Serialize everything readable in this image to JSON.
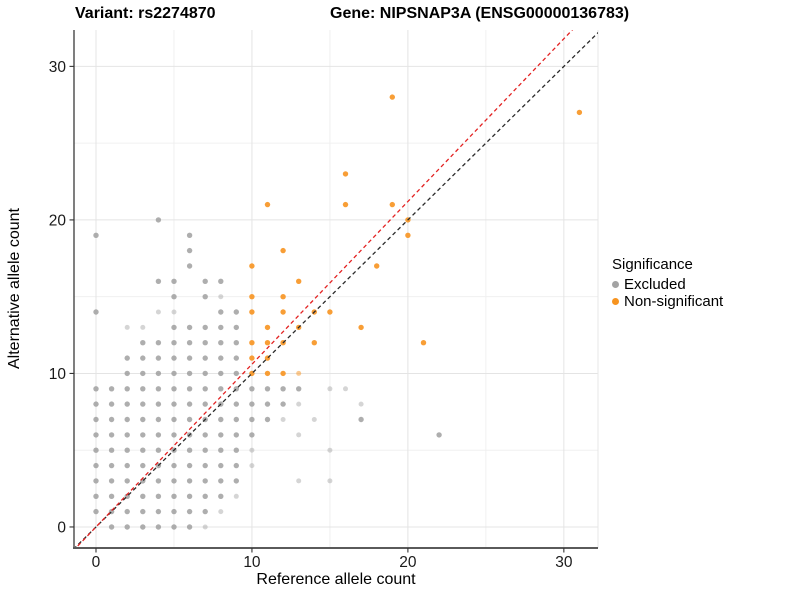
{
  "figure": {
    "title_left": "Variant: rs2274870",
    "title_right": "Gene: NIPSNAP3A (ENSG00000136783)"
  },
  "chart_data": {
    "type": "scatter",
    "xlabel": "Reference allele count",
    "ylabel": "Alternative allele count",
    "xlim": [
      -1.41,
      32.19
    ],
    "ylim": [
      -1.37,
      32.37
    ],
    "x_major_ticks": [
      0,
      10,
      20,
      30
    ],
    "y_major_ticks": [
      0,
      10,
      20,
      30
    ],
    "x_minor_ticks": [
      5,
      15,
      25
    ],
    "y_minor_ticks": [
      5,
      15,
      25
    ],
    "grid": "major+minor",
    "legend": {
      "title": "Significance",
      "position": "right",
      "entries": [
        {
          "label": "Excluded",
          "color": "#a3a3a3"
        },
        {
          "label": "Non-significant",
          "color": "#f79420"
        }
      ]
    },
    "reference_lines": [
      {
        "name": "identity",
        "slope": 1,
        "intercept": 0,
        "style": "dashed",
        "color": "#2b2b2b"
      },
      {
        "name": "fitted-ratio",
        "slope": 1.06,
        "intercept": 0,
        "style": "dashed",
        "color": "#e32222"
      }
    ],
    "series": [
      {
        "name": "Excluded",
        "color": "#9a9a9a",
        "opacity": 0.8,
        "light_opacity": 0.42,
        "points": [
          [
            1,
            0
          ],
          [
            2,
            0
          ],
          [
            3,
            0
          ],
          [
            4,
            0
          ],
          [
            5,
            0
          ],
          [
            6,
            0
          ],
          [
            0,
            1
          ],
          [
            1,
            1
          ],
          [
            2,
            1
          ],
          [
            3,
            1
          ],
          [
            4,
            1
          ],
          [
            5,
            1
          ],
          [
            6,
            1
          ],
          [
            7,
            1
          ],
          [
            0,
            2
          ],
          [
            1,
            2
          ],
          [
            2,
            2
          ],
          [
            3,
            2
          ],
          [
            4,
            2
          ],
          [
            5,
            2
          ],
          [
            6,
            2
          ],
          [
            7,
            2
          ],
          [
            8,
            2
          ],
          [
            0,
            3
          ],
          [
            1,
            3
          ],
          [
            2,
            3
          ],
          [
            3,
            3
          ],
          [
            4,
            3
          ],
          [
            5,
            3
          ],
          [
            6,
            3
          ],
          [
            7,
            3
          ],
          [
            8,
            3
          ],
          [
            9,
            3
          ],
          [
            0,
            4
          ],
          [
            1,
            4
          ],
          [
            2,
            4
          ],
          [
            3,
            4
          ],
          [
            4,
            4
          ],
          [
            5,
            4
          ],
          [
            6,
            4
          ],
          [
            7,
            4
          ],
          [
            8,
            4
          ],
          [
            9,
            4
          ],
          [
            0,
            5
          ],
          [
            1,
            5
          ],
          [
            2,
            5
          ],
          [
            3,
            5
          ],
          [
            4,
            5
          ],
          [
            5,
            5
          ],
          [
            6,
            5
          ],
          [
            7,
            5
          ],
          [
            8,
            5
          ],
          [
            9,
            5
          ],
          [
            0,
            6
          ],
          [
            1,
            6
          ],
          [
            2,
            6
          ],
          [
            3,
            6
          ],
          [
            4,
            6
          ],
          [
            5,
            6
          ],
          [
            6,
            6
          ],
          [
            7,
            6
          ],
          [
            8,
            6
          ],
          [
            9,
            6
          ],
          [
            10,
            6
          ],
          [
            22,
            6
          ],
          [
            0,
            7
          ],
          [
            1,
            7
          ],
          [
            2,
            7
          ],
          [
            3,
            7
          ],
          [
            4,
            7
          ],
          [
            5,
            7
          ],
          [
            6,
            7
          ],
          [
            7,
            7
          ],
          [
            8,
            7
          ],
          [
            9,
            7
          ],
          [
            10,
            7
          ],
          [
            11,
            7
          ],
          [
            17,
            7
          ],
          [
            0,
            8
          ],
          [
            1,
            8
          ],
          [
            2,
            8
          ],
          [
            3,
            8
          ],
          [
            4,
            8
          ],
          [
            5,
            8
          ],
          [
            6,
            8
          ],
          [
            7,
            8
          ],
          [
            8,
            8
          ],
          [
            9,
            8
          ],
          [
            10,
            8
          ],
          [
            11,
            8
          ],
          [
            12,
            8
          ],
          [
            0,
            9
          ],
          [
            1,
            9
          ],
          [
            2,
            9
          ],
          [
            3,
            9
          ],
          [
            4,
            9
          ],
          [
            5,
            9
          ],
          [
            6,
            9
          ],
          [
            7,
            9
          ],
          [
            8,
            9
          ],
          [
            9,
            9
          ],
          [
            10,
            9
          ],
          [
            11,
            9
          ],
          [
            12,
            9
          ],
          [
            13,
            9
          ],
          [
            2,
            10
          ],
          [
            3,
            10
          ],
          [
            4,
            10
          ],
          [
            5,
            10
          ],
          [
            6,
            10
          ],
          [
            7,
            10
          ],
          [
            8,
            10
          ],
          [
            9,
            10
          ],
          [
            2,
            11
          ],
          [
            3,
            11
          ],
          [
            4,
            11
          ],
          [
            5,
            11
          ],
          [
            6,
            11
          ],
          [
            7,
            11
          ],
          [
            8,
            11
          ],
          [
            9,
            11
          ],
          [
            3,
            12
          ],
          [
            4,
            12
          ],
          [
            5,
            12
          ],
          [
            6,
            12
          ],
          [
            7,
            12
          ],
          [
            8,
            12
          ],
          [
            9,
            12
          ],
          [
            5,
            13
          ],
          [
            6,
            13
          ],
          [
            7,
            13
          ],
          [
            8,
            13
          ],
          [
            9,
            13
          ],
          [
            0,
            14
          ],
          [
            8,
            14
          ],
          [
            9,
            14
          ],
          [
            5,
            15
          ],
          [
            7,
            15
          ],
          [
            4,
            16
          ],
          [
            5,
            16
          ],
          [
            7,
            16
          ],
          [
            8,
            16
          ],
          [
            6,
            17
          ],
          [
            6,
            18
          ],
          [
            0,
            19
          ],
          [
            6,
            19
          ],
          [
            4,
            20
          ]
        ],
        "light_points": [
          [
            7,
            0
          ],
          [
            8,
            1
          ],
          [
            9,
            2
          ],
          [
            13,
            3
          ],
          [
            15,
            3
          ],
          [
            10,
            4
          ],
          [
            10,
            5
          ],
          [
            15,
            5
          ],
          [
            13,
            6
          ],
          [
            12,
            7
          ],
          [
            14,
            7
          ],
          [
            13,
            8
          ],
          [
            17,
            8
          ],
          [
            15,
            9
          ],
          [
            16,
            9
          ],
          [
            2,
            13
          ],
          [
            3,
            13
          ],
          [
            4,
            14
          ],
          [
            5,
            14
          ],
          [
            8,
            15
          ]
        ]
      },
      {
        "name": "Non-significant",
        "color": "#f79420",
        "opacity": 0.9,
        "light_opacity": 0.5,
        "points": [
          [
            10,
            10
          ],
          [
            11,
            10
          ],
          [
            12,
            10
          ],
          [
            10,
            11
          ],
          [
            11,
            11
          ],
          [
            10,
            12
          ],
          [
            11,
            12
          ],
          [
            12,
            12
          ],
          [
            14,
            12
          ],
          [
            21,
            12
          ],
          [
            11,
            13
          ],
          [
            13,
            13
          ],
          [
            17,
            13
          ],
          [
            10,
            14
          ],
          [
            12,
            14
          ],
          [
            14,
            14
          ],
          [
            15,
            14
          ],
          [
            10,
            15
          ],
          [
            12,
            15
          ],
          [
            13,
            16
          ],
          [
            10,
            17
          ],
          [
            18,
            17
          ],
          [
            12,
            18
          ],
          [
            20,
            19
          ],
          [
            20,
            20
          ],
          [
            11,
            21
          ],
          [
            16,
            21
          ],
          [
            19,
            21
          ],
          [
            16,
            23
          ],
          [
            19,
            28
          ],
          [
            31,
            27
          ]
        ],
        "light_points": [
          [
            13,
            10
          ]
        ]
      }
    ]
  }
}
